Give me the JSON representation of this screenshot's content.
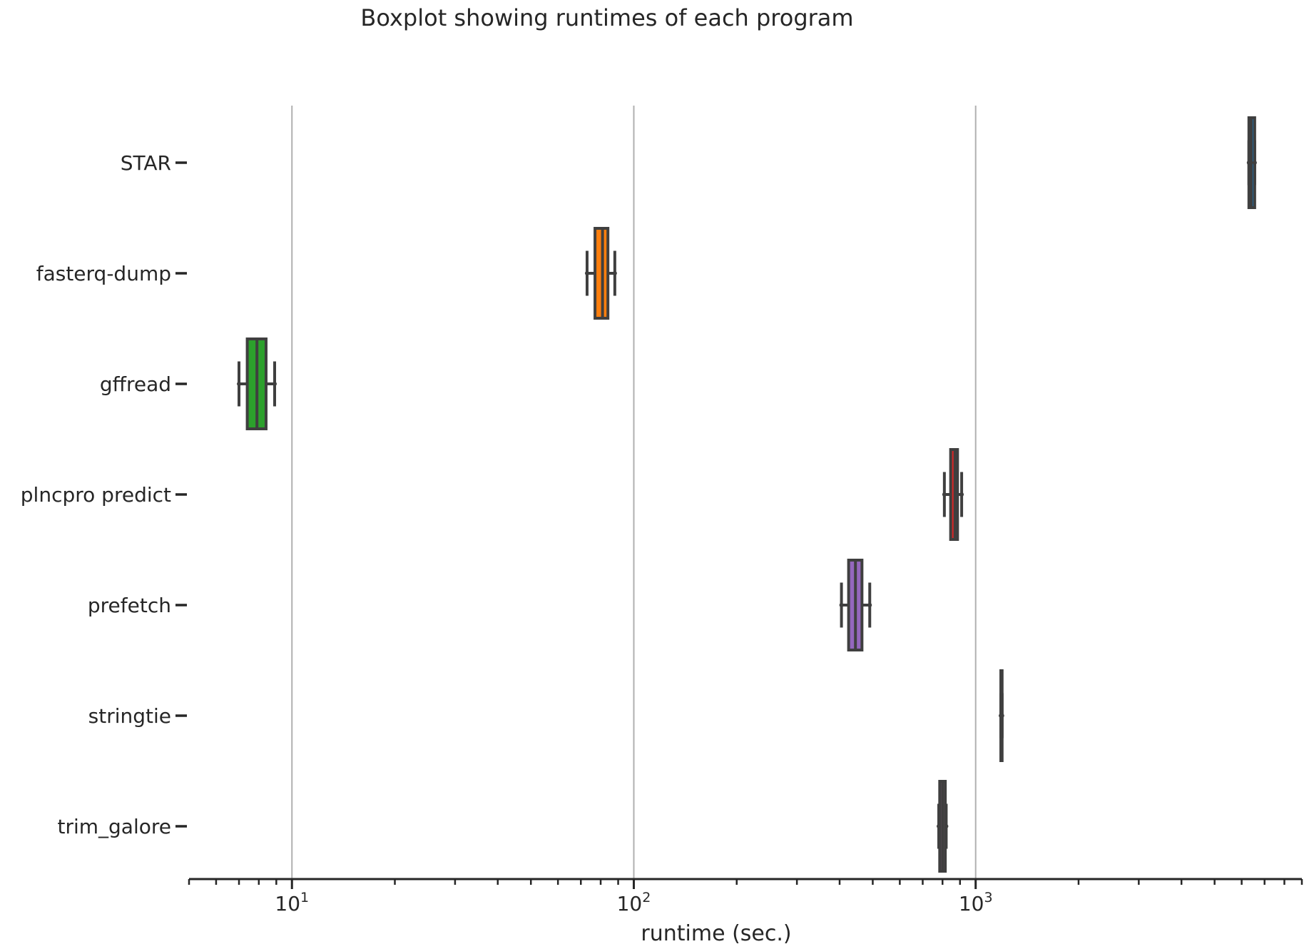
{
  "chart_data": {
    "type": "boxplot",
    "orientation": "horizontal",
    "title": "Boxplot showing runtimes of each program",
    "xlabel": "runtime (sec.)",
    "ylabel": "",
    "xscale": "log",
    "xlim": [
      5,
      9000
    ],
    "major_ticks": [
      {
        "value": 10,
        "base": "10",
        "exp": "1"
      },
      {
        "value": 100,
        "base": "10",
        "exp": "2"
      },
      {
        "value": 1000,
        "base": "10",
        "exp": "3"
      }
    ],
    "grid": "x-major",
    "colors": {
      "box_edge": "#3f3f3f",
      "grid": "#b0b0b0",
      "axis": "#262626"
    },
    "categories": [
      "STAR",
      "fasterq-dump",
      "gffread",
      "plncpro predict",
      "prefetch",
      "stringtie",
      "trim_galore"
    ],
    "boxes": [
      {
        "label": "STAR",
        "whislo": 6300,
        "q1": 6300,
        "med": 6400,
        "q3": 6550,
        "whishi": 6550,
        "color": "#1f77b4"
      },
      {
        "label": "fasterq-dump",
        "whislo": 73,
        "q1": 77,
        "med": 81,
        "q3": 84,
        "whishi": 88,
        "color": "#ff7f0e"
      },
      {
        "label": "gffread",
        "whislo": 7.0,
        "q1": 7.4,
        "med": 7.9,
        "q3": 8.4,
        "whishi": 8.9,
        "color": "#2ca02c"
      },
      {
        "label": "plncpro predict",
        "whislo": 810,
        "q1": 845,
        "med": 870,
        "q3": 885,
        "whishi": 910,
        "color": "#d62728"
      },
      {
        "label": "prefetch",
        "whislo": 405,
        "q1": 425,
        "med": 445,
        "q3": 465,
        "whishi": 490,
        "color": "#9467bd"
      },
      {
        "label": "stringtie",
        "whislo": 1185,
        "q1": 1185,
        "med": 1190,
        "q3": 1195,
        "whishi": 1195,
        "color": "#8c564b"
      },
      {
        "label": "trim_galore",
        "whislo": 780,
        "q1": 785,
        "med": 800,
        "q3": 815,
        "whishi": 820,
        "color": "#e377c2"
      }
    ]
  }
}
